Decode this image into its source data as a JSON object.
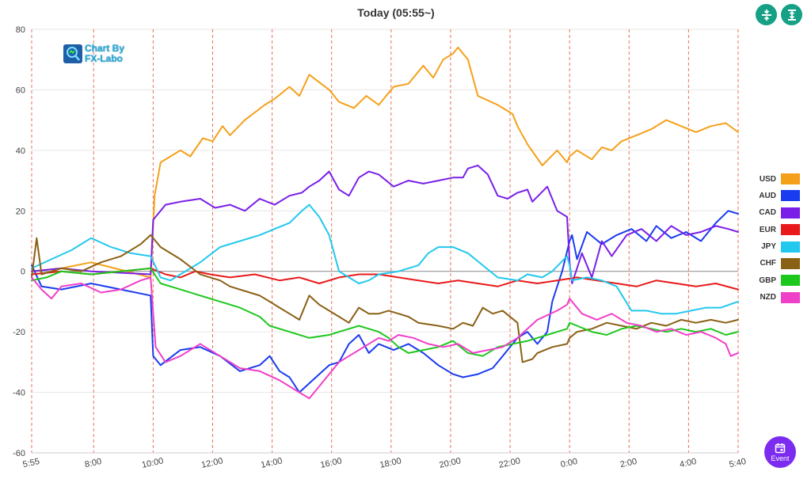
{
  "header": {
    "title": "Today  (05:55~)"
  },
  "toolbar": {
    "zoom_icon": "vertical-compress-icon",
    "fit_icon": "vertical-expand-icon",
    "accent_color": "#16a085"
  },
  "logo": {
    "line1": "Chart By",
    "line2": "FX-Labo"
  },
  "event_button": {
    "label": "Event",
    "icon": "calendar-icon",
    "color": "#7b2cf0"
  },
  "chart_data": {
    "type": "line",
    "title": "Today  (05:55~)",
    "xlabel": "",
    "ylabel": "",
    "ylim": [
      -60,
      80
    ],
    "yticks": [
      80,
      60,
      40,
      20,
      0,
      -20,
      -40,
      -60
    ],
    "xlim": [
      0,
      1425
    ],
    "xtick_labels": [
      "5:55",
      "8:00",
      "10:00",
      "12:00",
      "14:00",
      "16:00",
      "18:00",
      "20:00",
      "22:00",
      "0:00",
      "2:00",
      "4:00",
      "5:40"
    ],
    "xtick_positions": [
      0,
      125,
      245,
      365,
      485,
      605,
      725,
      845,
      965,
      1085,
      1205,
      1325,
      1425
    ],
    "grid": "vertical dashed",
    "legend_position": "right",
    "series": [
      {
        "name": "USD",
        "color": "#f5a01a",
        "x": [
          0,
          60,
          120,
          240,
          248,
          260,
          300,
          320,
          345,
          365,
          385,
          400,
          430,
          470,
          490,
          520,
          540,
          560,
          600,
          620,
          650,
          675,
          700,
          730,
          760,
          790,
          810,
          830,
          850,
          860,
          880,
          900,
          940,
          970,
          980,
          1000,
          1030,
          1060,
          1080,
          1085,
          1100,
          1130,
          1150,
          1170,
          1190,
          1220,
          1250,
          1280,
          1310,
          1340,
          1370,
          1400,
          1425
        ],
        "y": [
          0,
          1,
          3,
          -2,
          25,
          36,
          40,
          38,
          44,
          43,
          48,
          45,
          50,
          55,
          57,
          61,
          58,
          65,
          60,
          56,
          54,
          58,
          55,
          61,
          62,
          68,
          64,
          70,
          72,
          74,
          70,
          58,
          55,
          52,
          48,
          42,
          35,
          40,
          36,
          38,
          40,
          37,
          41,
          40,
          43,
          45,
          47,
          50,
          48,
          46,
          48,
          49,
          46
        ]
      },
      {
        "name": "AUD",
        "color": "#1a3cf0",
        "x": [
          0,
          20,
          60,
          120,
          240,
          245,
          260,
          300,
          340,
          380,
          420,
          460,
          480,
          500,
          520,
          540,
          560,
          580,
          600,
          620,
          640,
          660,
          680,
          700,
          730,
          760,
          790,
          820,
          850,
          870,
          900,
          930,
          950,
          980,
          1000,
          1020,
          1040,
          1050,
          1060,
          1070,
          1085,
          1090,
          1100,
          1120,
          1150,
          1180,
          1210,
          1240,
          1260,
          1290,
          1320,
          1350,
          1380,
          1405,
          1425
        ],
        "y": [
          2,
          -5,
          -6,
          -4,
          -8,
          -28,
          -31,
          -26,
          -25,
          -28,
          -33,
          -31,
          -28,
          -33,
          -35,
          -40,
          -37,
          -34,
          -31,
          -30,
          -24,
          -21,
          -27,
          -24,
          -26,
          -24,
          -27,
          -31,
          -34,
          -35,
          -34,
          -32,
          -28,
          -22,
          -20,
          -24,
          -20,
          -10,
          -5,
          0,
          10,
          12,
          4,
          13,
          9,
          12,
          14,
          10,
          15,
          11,
          13,
          10,
          16,
          20,
          19
        ]
      },
      {
        "name": "CAD",
        "color": "#7a1fe8",
        "x": [
          0,
          60,
          120,
          240,
          245,
          250,
          270,
          300,
          340,
          370,
          400,
          430,
          460,
          490,
          520,
          545,
          560,
          580,
          600,
          620,
          640,
          660,
          680,
          700,
          730,
          760,
          790,
          820,
          850,
          870,
          880,
          900,
          920,
          940,
          960,
          980,
          1000,
          1010,
          1040,
          1060,
          1080,
          1085,
          1090,
          1110,
          1130,
          1150,
          1170,
          1200,
          1230,
          1260,
          1290,
          1320,
          1350,
          1380,
          1405,
          1425
        ],
        "y": [
          0,
          1,
          0,
          -1,
          17,
          18,
          22,
          23,
          24,
          21,
          22,
          20,
          24,
          22,
          25,
          26,
          28,
          30,
          33,
          27,
          25,
          31,
          33,
          32,
          28,
          30,
          29,
          30,
          31,
          31,
          34,
          35,
          32,
          25,
          24,
          26,
          27,
          23,
          28,
          20,
          18,
          3,
          -4,
          6,
          -2,
          10,
          5,
          12,
          14,
          10,
          15,
          12,
          13,
          15,
          14,
          13
        ]
      },
      {
        "name": "EUR",
        "color": "#e81a1a",
        "x": [
          0,
          60,
          120,
          180,
          240,
          270,
          300,
          330,
          360,
          400,
          450,
          500,
          540,
          580,
          620,
          660,
          700,
          740,
          780,
          820,
          860,
          900,
          940,
          980,
          1020,
          1060,
          1100,
          1140,
          1180,
          1220,
          1260,
          1300,
          1340,
          1380,
          1425
        ],
        "y": [
          -1,
          0,
          -1,
          0,
          1,
          -1,
          -2,
          0,
          -1,
          -2,
          -1,
          -3,
          -2,
          -4,
          -2,
          -1,
          -1,
          -2,
          -3,
          -4,
          -3,
          -4,
          -5,
          -3,
          -4,
          -3,
          -2,
          -3,
          -4,
          -5,
          -3,
          -4,
          -5,
          -4,
          -6
        ]
      },
      {
        "name": "JPY",
        "color": "#22c8ee",
        "x": [
          0,
          40,
          80,
          120,
          160,
          200,
          240,
          260,
          280,
          300,
          340,
          380,
          420,
          460,
          490,
          520,
          545,
          560,
          580,
          600,
          620,
          640,
          660,
          680,
          700,
          740,
          780,
          800,
          820,
          850,
          880,
          910,
          940,
          980,
          1000,
          1030,
          1050,
          1080,
          1085,
          1090,
          1120,
          1150,
          1180,
          1210,
          1240,
          1270,
          1300,
          1330,
          1360,
          1390,
          1425
        ],
        "y": [
          1,
          4,
          7,
          11,
          8,
          6,
          5,
          -2,
          -3,
          -1,
          3,
          8,
          10,
          12,
          14,
          16,
          20,
          22,
          18,
          12,
          0,
          -2,
          -4,
          -3,
          -1,
          0,
          2,
          6,
          8,
          8,
          6,
          2,
          -2,
          -3,
          -1,
          -2,
          0,
          5,
          2,
          -3,
          -2,
          -3,
          -5,
          -13,
          -13,
          -14,
          -14,
          -13,
          -12,
          -12,
          -10
        ]
      },
      {
        "name": "CHF",
        "color": "#8a6015",
        "x": [
          0,
          10,
          20,
          60,
          100,
          140,
          180,
          220,
          240,
          260,
          300,
          340,
          360,
          380,
          400,
          440,
          460,
          480,
          500,
          520,
          540,
          560,
          580,
          600,
          620,
          640,
          660,
          680,
          700,
          720,
          740,
          760,
          780,
          820,
          850,
          870,
          890,
          910,
          930,
          950,
          980,
          990,
          1010,
          1020,
          1050,
          1080,
          1085,
          1100,
          1130,
          1160,
          1190,
          1220,
          1250,
          1280,
          1310,
          1340,
          1370,
          1400,
          1425
        ],
        "y": [
          -2,
          11,
          -1,
          1,
          0,
          3,
          5,
          9,
          12,
          8,
          4,
          -1,
          -2,
          -3,
          -5,
          -7,
          -8,
          -10,
          -12,
          -14,
          -16,
          -8,
          -11,
          -13,
          -15,
          -17,
          -12,
          -14,
          -14,
          -13,
          -14,
          -15,
          -17,
          -18,
          -19,
          -17,
          -18,
          -12,
          -14,
          -13,
          -17,
          -30,
          -29,
          -27,
          -25,
          -24,
          -22,
          -20,
          -19,
          -17,
          -18,
          -19,
          -17,
          -18,
          -16,
          -17,
          -16,
          -17,
          -16
        ]
      },
      {
        "name": "GBP",
        "color": "#1dc81d",
        "x": [
          0,
          30,
          60,
          120,
          180,
          240,
          260,
          300,
          340,
          380,
          420,
          460,
          480,
          520,
          560,
          600,
          620,
          640,
          660,
          680,
          700,
          720,
          740,
          760,
          790,
          820,
          850,
          880,
          910,
          940,
          970,
          1000,
          1020,
          1040,
          1060,
          1080,
          1085,
          1100,
          1130,
          1160,
          1190,
          1220,
          1250,
          1280,
          1310,
          1340,
          1370,
          1400,
          1425
        ],
        "y": [
          -3,
          -2,
          0,
          -1,
          0,
          1,
          -4,
          -6,
          -8,
          -10,
          -12,
          -15,
          -18,
          -20,
          -22,
          -21,
          -20,
          -19,
          -18,
          -19,
          -20,
          -22,
          -25,
          -27,
          -26,
          -25,
          -23,
          -27,
          -28,
          -25,
          -24,
          -23,
          -22,
          -21,
          -20,
          -19,
          -17,
          -18,
          -20,
          -21,
          -19,
          -18,
          -19,
          -20,
          -19,
          -20,
          -19,
          -21,
          -20
        ]
      },
      {
        "name": "NZD",
        "color": "#f03fc8",
        "x": [
          0,
          20,
          40,
          60,
          100,
          140,
          180,
          220,
          240,
          250,
          270,
          300,
          340,
          380,
          420,
          460,
          500,
          540,
          560,
          580,
          600,
          620,
          640,
          660,
          680,
          700,
          720,
          740,
          770,
          800,
          830,
          860,
          890,
          920,
          950,
          980,
          1000,
          1020,
          1060,
          1080,
          1085,
          1110,
          1140,
          1170,
          1200,
          1230,
          1260,
          1290,
          1320,
          1350,
          1380,
          1400,
          1410,
          1425
        ],
        "y": [
          -2,
          -6,
          -9,
          -5,
          -4,
          -7,
          -6,
          -3,
          -2,
          -25,
          -30,
          -28,
          -24,
          -28,
          -32,
          -33,
          -36,
          -40,
          -42,
          -38,
          -34,
          -30,
          -28,
          -26,
          -24,
          -22,
          -23,
          -21,
          -22,
          -24,
          -25,
          -24,
          -27,
          -26,
          -25,
          -22,
          -19,
          -16,
          -13,
          -11,
          -9,
          -14,
          -16,
          -14,
          -17,
          -18,
          -20,
          -19,
          -21,
          -20,
          -22,
          -24,
          -28,
          -27
        ]
      }
    ]
  }
}
